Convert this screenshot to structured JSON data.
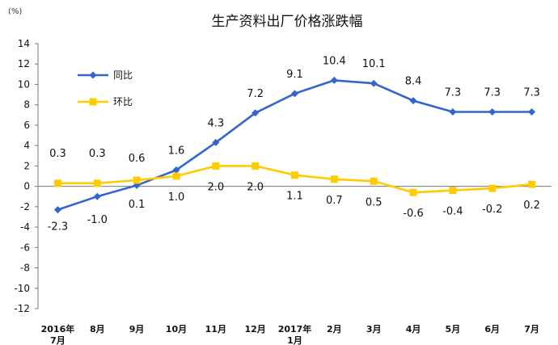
{
  "chart_data": {
    "type": "line",
    "title": "生产资料出厂价格涨跌幅",
    "unit": "(%)",
    "categories": [
      [
        "2016年",
        "7月"
      ],
      [
        "8月"
      ],
      [
        "9月"
      ],
      [
        "10月"
      ],
      [
        "11月"
      ],
      [
        "12月"
      ],
      [
        "2017年",
        "1月"
      ],
      [
        "2月"
      ],
      [
        "3月"
      ],
      [
        "4月"
      ],
      [
        "5月"
      ],
      [
        "6月"
      ],
      [
        "7月"
      ]
    ],
    "ylim": [
      -12,
      14
    ],
    "yticks": [
      -12,
      -10,
      -8,
      -6,
      -4,
      -2,
      0,
      2,
      4,
      6,
      8,
      10,
      12,
      14
    ],
    "legend_position": "top-left",
    "series": [
      {
        "name": "同比",
        "color": "#3366CC",
        "marker": "diamond",
        "values": [
          -2.3,
          -1.0,
          0.1,
          1.6,
          4.3,
          7.2,
          9.1,
          10.4,
          10.1,
          8.4,
          7.3,
          7.3,
          7.3
        ],
        "labels": [
          "-2.3",
          "-1.0",
          "0.1",
          "1.6",
          "4.3",
          "7.2",
          "9.1",
          "10.4",
          "10.1",
          "8.4",
          "7.3",
          "7.3",
          "7.3"
        ]
      },
      {
        "name": "环比",
        "color": "#FFCC00",
        "marker": "square",
        "values": [
          0.3,
          0.3,
          0.6,
          1.0,
          2.0,
          2.0,
          1.1,
          0.7,
          0.5,
          -0.6,
          -0.4,
          -0.2,
          0.2
        ],
        "labels": [
          "0.3",
          "0.3",
          "0.6",
          "1.0",
          "2.0",
          "2.0",
          "1.1",
          "0.7",
          "0.5",
          "-0.6",
          "-0.4",
          "-0.2",
          "0.2"
        ]
      }
    ]
  }
}
